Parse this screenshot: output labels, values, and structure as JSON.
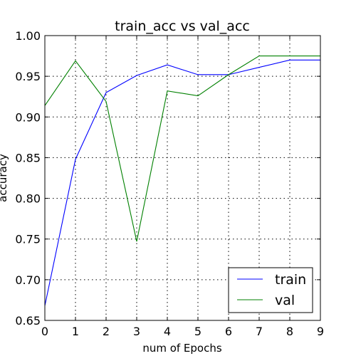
{
  "chart_data": {
    "type": "line",
    "title": "train_acc vs val_acc",
    "xlabel": "num of Epochs",
    "ylabel": "accuracy",
    "x": [
      0,
      1,
      2,
      3,
      4,
      5,
      6,
      7,
      8,
      9
    ],
    "xlim": [
      0,
      9
    ],
    "ylim": [
      0.65,
      1.0
    ],
    "xticks": [
      "0",
      "1",
      "2",
      "3",
      "4",
      "5",
      "6",
      "7",
      "8",
      "9"
    ],
    "yticks": [
      "0.65",
      "0.70",
      "0.75",
      "0.80",
      "0.85",
      "0.90",
      "0.95",
      "1.00"
    ],
    "grid": true,
    "legend_position": "lower-right",
    "series": [
      {
        "name": "train",
        "color": "#0000ff",
        "values": [
          0.668,
          0.848,
          0.93,
          0.951,
          0.964,
          0.952,
          0.952,
          0.961,
          0.97,
          0.97
        ]
      },
      {
        "name": "val",
        "color": "#008000",
        "values": [
          0.914,
          0.969,
          0.919,
          0.747,
          0.932,
          0.926,
          0.952,
          0.975,
          0.975,
          0.975
        ]
      }
    ]
  }
}
